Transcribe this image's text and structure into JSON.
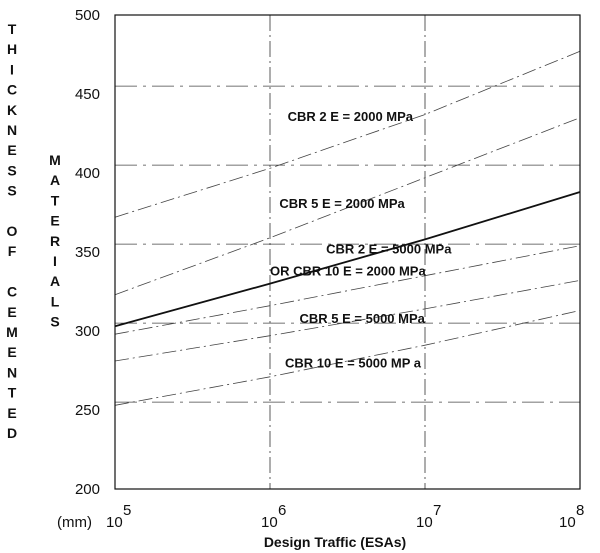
{
  "chart_data": {
    "type": "line",
    "xscale": "log",
    "xlim": [
      100000,
      100000000
    ],
    "ylim": [
      200,
      500
    ],
    "grid": true,
    "xlabel": "Design Traffic (ESAs)",
    "ylabel_left": "THICKNESS OF CEMENTED",
    "ylabel_right": "MATERIALS",
    "yunit": "(mm)",
    "yticks": [
      200,
      250,
      300,
      350,
      400,
      450,
      500
    ],
    "xticks": [
      {
        "value": 100000,
        "base": "10",
        "exp": "5"
      },
      {
        "value": 1000000,
        "base": "10",
        "exp": "6"
      },
      {
        "value": 10000000,
        "base": "10",
        "exp": "7"
      },
      {
        "value": 100000000,
        "base": "10",
        "exp": "8"
      }
    ],
    "hlines": [
      255,
      305,
      355,
      405,
      455
    ],
    "series": [
      {
        "name": "CBR 2 E = 2000 MPa",
        "style": "dashdot",
        "x": [
          100000,
          1000000,
          10000000,
          100000000
        ],
        "y": [
          372,
          403,
          437,
          477
        ]
      },
      {
        "name": "CBR 5 E = 2000 MPa",
        "style": "dashdot",
        "x": [
          100000,
          1000000,
          10000000,
          100000000
        ],
        "y": [
          323,
          359,
          397,
          435
        ]
      },
      {
        "name": "CBR 2 E = 5000 MPa OR CBR 10 E = 2000 MPa",
        "style": "solid",
        "x": [
          100000,
          1000000,
          10000000,
          100000000
        ],
        "y": [
          303,
          330,
          358,
          388
        ]
      },
      {
        "name": "CBR 5 E = 5000 MPa",
        "style": "dashdot",
        "x": [
          100000,
          1000000,
          10000000,
          100000000
        ],
        "y": [
          298,
          316,
          335,
          354
        ]
      },
      {
        "name": "CBR 10 E = 5000 MPa",
        "style": "dashdot",
        "x": [
          100000,
          1000000,
          10000000,
          100000000
        ],
        "y": [
          281,
          297,
          314,
          332
        ]
      },
      {
        "name": "",
        "style": "dashdot",
        "x": [
          100000,
          1000000,
          10000000,
          100000000
        ],
        "y": [
          253,
          271,
          291,
          313
        ]
      }
    ],
    "annotations": [
      {
        "text": "CBR 2 E = 2000 MPa",
        "x": 1300000,
        "y": 433
      },
      {
        "text": "CBR 5 E = 2000 MPa",
        "x": 1150000,
        "y": 378
      },
      {
        "text": "CBR 2 E = 5000 MPa",
        "x": 2300000,
        "y": 349
      },
      {
        "text": "OR CBR 10 E = 2000 MPa",
        "x": 1000000,
        "y": 335
      },
      {
        "text": "CBR 5 E = 5000 MPa",
        "x": 1550000,
        "y": 305
      },
      {
        "text": "CBR 10 E = 5000 MP a",
        "x": 1250000,
        "y": 277
      }
    ]
  }
}
